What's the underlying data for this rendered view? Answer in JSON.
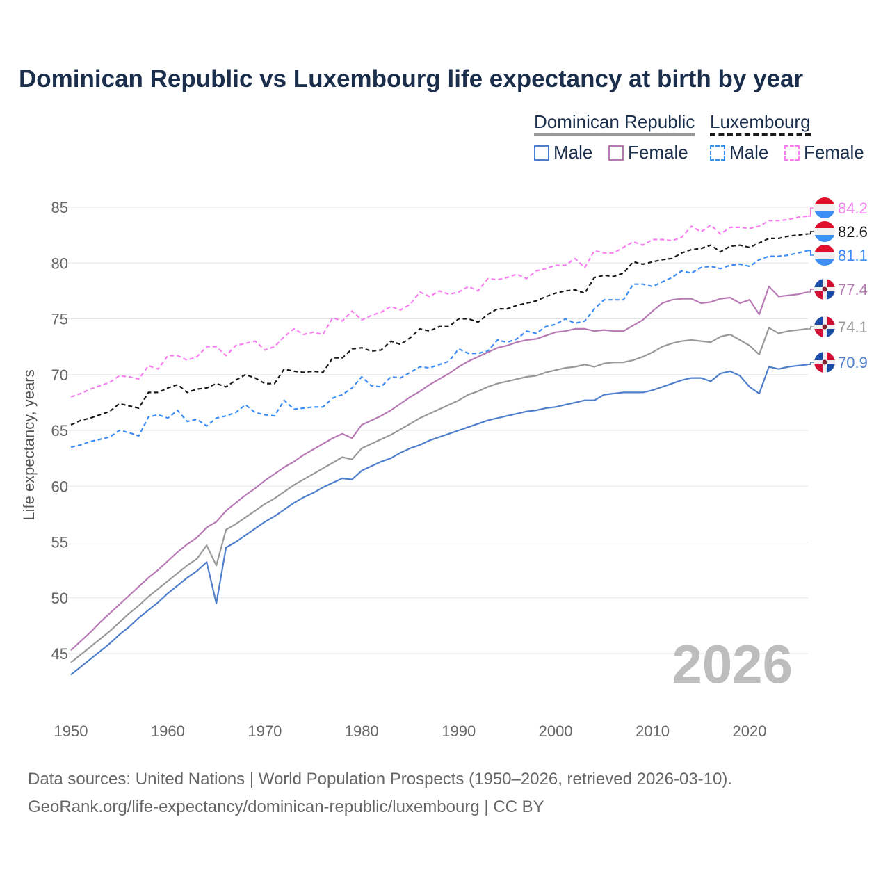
{
  "chart_data": {
    "type": "line",
    "title": "Dominican Republic vs Luxembourg life expectancy at birth by year",
    "xlabel": "",
    "ylabel": "Life expectancy, years",
    "xlim": [
      1950,
      2026
    ],
    "ylim": [
      41,
      86
    ],
    "x_start": 1950,
    "x_ticks": [
      1950,
      1960,
      1970,
      1980,
      1990,
      2000,
      2010,
      2020
    ],
    "y_ticks": [
      45,
      50,
      55,
      60,
      65,
      70,
      75,
      80,
      85
    ],
    "grid": true,
    "watermark_year": "2026",
    "legend": {
      "groups": [
        {
          "name": "Dominican Republic",
          "style": "solid",
          "items": [
            "Male",
            "Female"
          ]
        },
        {
          "name": "Luxembourg",
          "style": "dashed",
          "items": [
            "Male",
            "Female"
          ]
        }
      ],
      "placement": "top-right"
    },
    "series": [
      {
        "name": "Luxembourg Female",
        "country": "Luxembourg",
        "color": "#f77ff0",
        "dashed": true,
        "end_label": "84.2",
        "values": [
          68.0,
          68.3,
          68.7,
          69.0,
          69.3,
          69.9,
          69.8,
          69.6,
          70.8,
          70.5,
          71.7,
          71.7,
          71.3,
          71.6,
          72.5,
          72.5,
          71.7,
          72.6,
          72.8,
          73.0,
          72.2,
          72.5,
          73.4,
          74.1,
          73.6,
          73.8,
          73.6,
          75.1,
          74.8,
          75.7,
          74.9,
          75.3,
          75.6,
          76.1,
          75.8,
          76.3,
          77.4,
          77.0,
          77.5,
          77.2,
          77.4,
          77.9,
          77.5,
          78.6,
          78.5,
          78.7,
          79.0,
          78.6,
          79.3,
          79.5,
          79.8,
          79.8,
          80.4,
          79.6,
          81.1,
          80.9,
          80.9,
          81.4,
          81.9,
          81.6,
          82.1,
          82.1,
          82.0,
          82.3,
          83.3,
          82.8,
          83.4,
          82.6,
          83.2,
          83.2,
          83.1,
          83.3,
          83.8,
          83.8,
          83.9,
          84.1,
          84.2
        ]
      },
      {
        "name": "Luxembourg",
        "country": "Luxembourg",
        "color": "#1a1a1a",
        "dashed": true,
        "end_label": "82.6",
        "values": [
          65.5,
          65.9,
          66.1,
          66.4,
          66.7,
          67.4,
          67.2,
          67.0,
          68.4,
          68.4,
          68.8,
          69.1,
          68.4,
          68.7,
          68.8,
          69.2,
          68.9,
          69.5,
          70.0,
          69.7,
          69.2,
          69.2,
          70.5,
          70.3,
          70.2,
          70.3,
          70.2,
          71.5,
          71.5,
          72.3,
          72.4,
          72.1,
          72.2,
          73.0,
          72.7,
          73.3,
          74.1,
          73.9,
          74.3,
          74.3,
          75.0,
          75.0,
          74.7,
          75.4,
          75.9,
          75.9,
          76.2,
          76.4,
          76.6,
          77.0,
          77.3,
          77.5,
          77.6,
          77.3,
          78.7,
          78.9,
          78.8,
          79.1,
          80.1,
          79.9,
          80.1,
          80.3,
          80.4,
          80.9,
          81.2,
          81.3,
          81.6,
          81.0,
          81.5,
          81.6,
          81.4,
          81.8,
          82.2,
          82.2,
          82.4,
          82.5,
          82.6
        ]
      },
      {
        "name": "Luxembourg Male",
        "country": "Luxembourg",
        "color": "#3b8cf5",
        "dashed": true,
        "end_label": "81.1",
        "values": [
          63.5,
          63.7,
          64.0,
          64.2,
          64.4,
          65.0,
          64.8,
          64.5,
          66.2,
          66.4,
          66.1,
          66.8,
          65.8,
          66.0,
          65.4,
          66.1,
          66.3,
          66.6,
          67.3,
          66.6,
          66.4,
          66.3,
          67.7,
          66.9,
          67.0,
          67.1,
          67.1,
          67.9,
          68.2,
          68.8,
          69.8,
          69.0,
          68.9,
          69.8,
          69.7,
          70.2,
          70.7,
          70.6,
          70.9,
          71.2,
          72.3,
          71.9,
          71.9,
          72.1,
          73.1,
          72.9,
          73.2,
          73.9,
          73.7,
          74.3,
          74.5,
          75.0,
          74.6,
          74.8,
          75.9,
          76.7,
          76.7,
          76.7,
          78.1,
          78.1,
          77.9,
          78.3,
          78.7,
          79.3,
          79.1,
          79.6,
          79.7,
          79.5,
          79.8,
          79.9,
          79.7,
          80.3,
          80.6,
          80.6,
          80.7,
          80.9,
          81.1
        ]
      },
      {
        "name": "Dominican Republic Female",
        "country": "Dominican Republic",
        "color": "#b77ab5",
        "dashed": false,
        "end_label": "77.4",
        "values": [
          45.3,
          46.1,
          46.9,
          47.8,
          48.6,
          49.4,
          50.2,
          51.0,
          51.8,
          52.5,
          53.3,
          54.1,
          54.8,
          55.4,
          56.3,
          56.8,
          57.8,
          58.5,
          59.2,
          59.8,
          60.5,
          61.1,
          61.7,
          62.2,
          62.8,
          63.3,
          63.8,
          64.3,
          64.7,
          64.3,
          65.5,
          65.9,
          66.3,
          66.8,
          67.4,
          68.0,
          68.5,
          69.1,
          69.6,
          70.1,
          70.7,
          71.2,
          71.6,
          72.0,
          72.4,
          72.6,
          72.9,
          73.1,
          73.2,
          73.5,
          73.8,
          73.9,
          74.1,
          74.1,
          73.9,
          74.0,
          73.9,
          73.9,
          74.4,
          74.9,
          75.7,
          76.4,
          76.7,
          76.8,
          76.8,
          76.4,
          76.5,
          76.8,
          76.9,
          76.4,
          76.7,
          75.4,
          77.9,
          77.0,
          77.1,
          77.2,
          77.4
        ]
      },
      {
        "name": "Dominican Republic",
        "country": "Dominican Republic",
        "color": "#999999",
        "dashed": false,
        "end_label": "74.1",
        "values": [
          44.2,
          44.9,
          45.6,
          46.3,
          47.0,
          47.8,
          48.6,
          49.3,
          50.1,
          50.8,
          51.5,
          52.2,
          52.9,
          53.5,
          54.7,
          52.9,
          56.1,
          56.6,
          57.2,
          57.8,
          58.4,
          58.9,
          59.5,
          60.1,
          60.6,
          61.1,
          61.6,
          62.1,
          62.6,
          62.4,
          63.4,
          63.8,
          64.2,
          64.6,
          65.1,
          65.6,
          66.1,
          66.5,
          66.9,
          67.3,
          67.7,
          68.2,
          68.5,
          68.9,
          69.2,
          69.4,
          69.6,
          69.8,
          69.9,
          70.2,
          70.4,
          70.6,
          70.7,
          70.9,
          70.7,
          71.0,
          71.1,
          71.1,
          71.3,
          71.6,
          72.0,
          72.5,
          72.8,
          73.0,
          73.1,
          73.0,
          72.9,
          73.4,
          73.6,
          73.1,
          72.6,
          71.8,
          74.2,
          73.7,
          73.9,
          74.0,
          74.1
        ]
      },
      {
        "name": "Dominican Republic Male",
        "country": "Dominican Republic",
        "color": "#4f7fcc",
        "dashed": false,
        "end_label": "70.9",
        "values": [
          43.1,
          43.8,
          44.5,
          45.2,
          45.9,
          46.7,
          47.4,
          48.2,
          48.9,
          49.6,
          50.4,
          51.1,
          51.8,
          52.4,
          53.2,
          49.5,
          54.5,
          55.0,
          55.6,
          56.2,
          56.8,
          57.3,
          57.9,
          58.5,
          59.0,
          59.4,
          59.9,
          60.3,
          60.7,
          60.6,
          61.4,
          61.8,
          62.2,
          62.5,
          63.0,
          63.4,
          63.7,
          64.1,
          64.4,
          64.7,
          65.0,
          65.3,
          65.6,
          65.9,
          66.1,
          66.3,
          66.5,
          66.7,
          66.8,
          67.0,
          67.1,
          67.3,
          67.5,
          67.7,
          67.7,
          68.2,
          68.3,
          68.4,
          68.4,
          68.4,
          68.6,
          68.9,
          69.2,
          69.5,
          69.7,
          69.7,
          69.4,
          70.1,
          70.3,
          69.9,
          68.9,
          68.3,
          70.7,
          70.5,
          70.7,
          70.8,
          70.9
        ]
      }
    ]
  },
  "footer": {
    "line1": "Data sources: United Nations | World Population Prospects (1950–2026, retrieved 2026-03-10).",
    "line2": "GeoRank.org/life-expectancy/dominican-republic/luxembourg | CC BY"
  }
}
